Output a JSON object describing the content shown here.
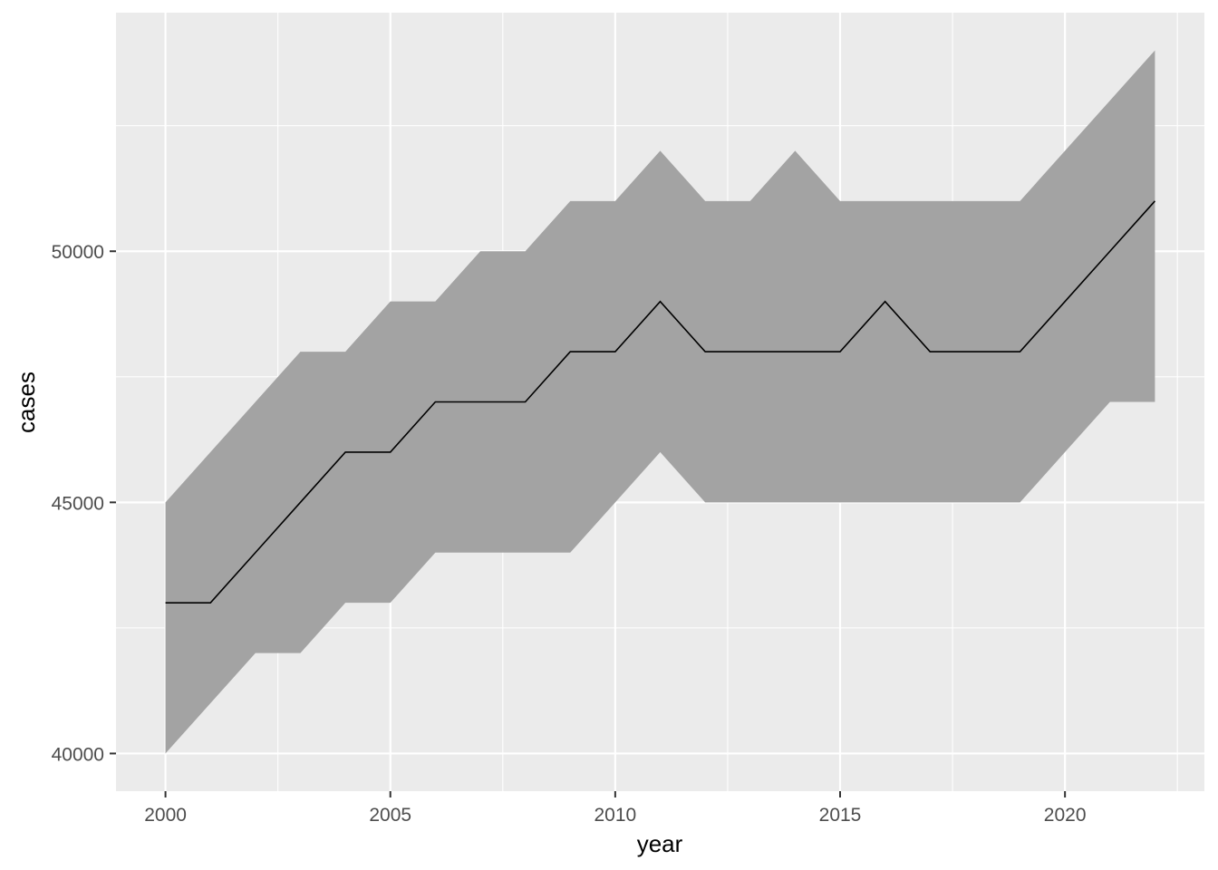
{
  "chart_data": {
    "type": "area",
    "xlabel": "year",
    "ylabel": "cases",
    "xlim": [
      1998.9,
      2023.1
    ],
    "ylim": [
      39250,
      54750
    ],
    "x_ticks": [
      2000,
      2005,
      2010,
      2015,
      2020
    ],
    "x_tick_labels": [
      "2000",
      "2005",
      "2010",
      "2015",
      "2020"
    ],
    "y_ticks": [
      40000,
      45000,
      50000
    ],
    "y_tick_labels": [
      "40000",
      "45000",
      "50000"
    ],
    "grid": true,
    "legend": "none",
    "x": [
      2000,
      2001,
      2002,
      2003,
      2004,
      2005,
      2006,
      2007,
      2008,
      2009,
      2010,
      2011,
      2012,
      2013,
      2014,
      2015,
      2016,
      2017,
      2018,
      2019,
      2020,
      2021,
      2022
    ],
    "series": [
      {
        "values": [
          43000,
          43000,
          44000,
          45000,
          46000,
          46000,
          47000,
          47000,
          47000,
          48000,
          48000,
          49000,
          48000,
          48000,
          48000,
          48000,
          49000,
          48000,
          48000,
          48000,
          49000,
          50000,
          51000
        ]
      }
    ],
    "ribbon": {
      "lower": [
        40000,
        41000,
        42000,
        42000,
        43000,
        43000,
        44000,
        44000,
        44000,
        44000,
        45000,
        46000,
        45000,
        45000,
        45000,
        45000,
        45000,
        45000,
        45000,
        45000,
        46000,
        47000,
        47000
      ],
      "upper": [
        45000,
        46000,
        47000,
        48000,
        48000,
        49000,
        49000,
        50000,
        50000,
        51000,
        51000,
        52000,
        51000,
        51000,
        52000,
        51000,
        51000,
        51000,
        51000,
        51000,
        52000,
        53000,
        54000
      ]
    },
    "colors": {
      "panel": "#EBEBEB",
      "grid": "#FFFFFF",
      "ribbon": "#A3A3A3",
      "line": "#000000"
    }
  }
}
